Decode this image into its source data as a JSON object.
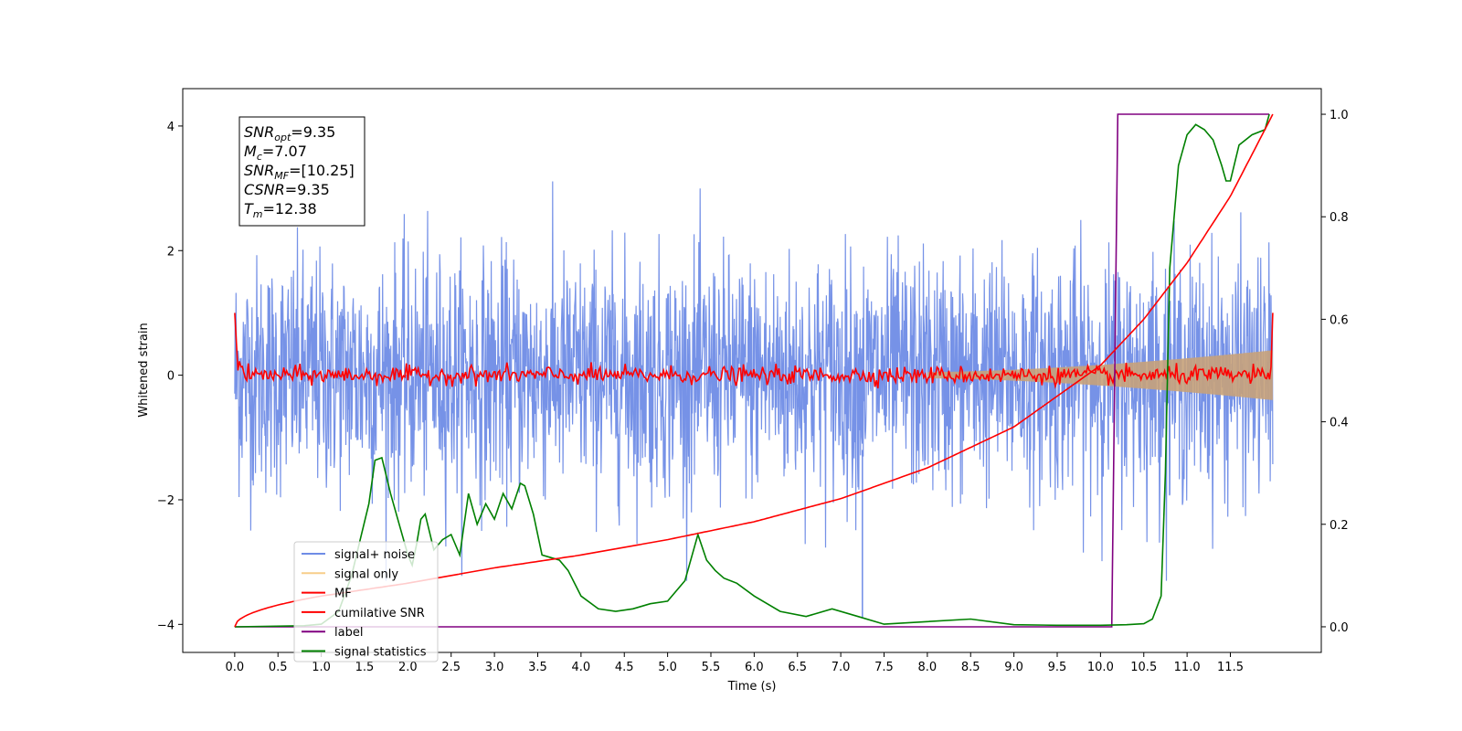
{
  "chart_data": {
    "type": "line",
    "xlabel": "Time (s)",
    "ylabel": "Whitened strain",
    "xlim": [
      -0.6,
      12.55
    ],
    "ylim": [
      -4.45,
      4.6
    ],
    "y2lim": [
      -0.05,
      1.05
    ],
    "x_ticks": [
      "0.0",
      "0.5",
      "1.0",
      "1.5",
      "2.0",
      "2.5",
      "3.0",
      "3.5",
      "4.0",
      "4.5",
      "5.0",
      "5.5",
      "6.0",
      "6.5",
      "7.0",
      "7.5",
      "8.0",
      "8.5",
      "9.0",
      "9.5",
      "10.0",
      "10.5",
      "11.0",
      "11.5"
    ],
    "y_ticks": [
      "−4",
      "−2",
      "0",
      "2",
      "4"
    ],
    "y2_ticks": [
      "0.0",
      "0.2",
      "0.4",
      "0.6",
      "0.8",
      "1.0"
    ],
    "info_box": [
      {
        "name": "SNR",
        "sub": "opt",
        "value": "=9.35"
      },
      {
        "name": "M",
        "sub": "c",
        "value": "=7.07"
      },
      {
        "name": "SNR",
        "sub": "MF",
        "value": "=[10.25]"
      },
      {
        "name": "CSNR",
        "sub": "",
        "value": "=9.35"
      },
      {
        "name": "T",
        "sub": "m",
        "value": "=12.38"
      }
    ],
    "legend_position": "lower-left",
    "series": [
      {
        "name": "signal+ noise",
        "color": "#6f8ce6",
        "axis": "left",
        "description_range": [
          -3.3,
          4.2
        ]
      },
      {
        "name": "signal only",
        "color": "#f5c26b",
        "axis": "left",
        "envelope_start": 0.05,
        "envelope_end": 0.4
      },
      {
        "name": "MF",
        "color": "#ff0000",
        "axis": "left"
      },
      {
        "name": "cumilative SNR",
        "color": "#ff0000",
        "axis": "right",
        "x": [
          0.0,
          1.0,
          2.0,
          3.0,
          4.0,
          5.0,
          6.0,
          7.0,
          8.0,
          9.0,
          10.0,
          10.5,
          11.0,
          11.5,
          11.99
        ],
        "y": [
          0.0,
          0.06,
          0.085,
          0.115,
          0.14,
          0.17,
          0.205,
          0.25,
          0.31,
          0.39,
          0.51,
          0.6,
          0.71,
          0.84,
          1.0
        ]
      },
      {
        "name": "label",
        "color": "#800080",
        "axis": "right",
        "x": [
          0.0,
          10.13,
          10.2,
          11.95
        ],
        "y": [
          0.0,
          0.0,
          1.0,
          1.0
        ]
      },
      {
        "name": "signal statistics",
        "color": "#008000",
        "axis": "right",
        "x": [
          0.0,
          0.8,
          1.0,
          1.2,
          1.35,
          1.45,
          1.55,
          1.62,
          1.7,
          1.8,
          1.9,
          2.0,
          2.05,
          2.1,
          2.15,
          2.2,
          2.3,
          2.4,
          2.5,
          2.6,
          2.7,
          2.8,
          2.9,
          3.0,
          3.1,
          3.2,
          3.3,
          3.35,
          3.45,
          3.55,
          3.65,
          3.75,
          3.85,
          4.0,
          4.2,
          4.4,
          4.6,
          4.8,
          5.0,
          5.2,
          5.35,
          5.45,
          5.55,
          5.65,
          5.8,
          6.0,
          6.3,
          6.6,
          6.9,
          7.2,
          7.5,
          8.0,
          8.5,
          9.0,
          9.5,
          10.0,
          10.3,
          10.5,
          10.6,
          10.7,
          10.75,
          10.8,
          10.9,
          11.0,
          11.1,
          11.2,
          11.3,
          11.4,
          11.45,
          11.5,
          11.6,
          11.75,
          11.9,
          11.95
        ],
        "y": [
          0.0,
          0.002,
          0.005,
          0.03,
          0.1,
          0.17,
          0.24,
          0.325,
          0.33,
          0.26,
          0.2,
          0.14,
          0.12,
          0.16,
          0.21,
          0.22,
          0.15,
          0.17,
          0.18,
          0.14,
          0.26,
          0.2,
          0.24,
          0.21,
          0.26,
          0.23,
          0.28,
          0.275,
          0.22,
          0.14,
          0.135,
          0.13,
          0.11,
          0.06,
          0.035,
          0.03,
          0.035,
          0.045,
          0.05,
          0.09,
          0.18,
          0.13,
          0.11,
          0.095,
          0.085,
          0.06,
          0.03,
          0.02,
          0.035,
          0.02,
          0.005,
          0.01,
          0.015,
          0.004,
          0.003,
          0.003,
          0.004,
          0.006,
          0.015,
          0.06,
          0.3,
          0.7,
          0.9,
          0.96,
          0.98,
          0.97,
          0.95,
          0.9,
          0.87,
          0.87,
          0.94,
          0.96,
          0.97,
          1.0
        ]
      }
    ]
  }
}
